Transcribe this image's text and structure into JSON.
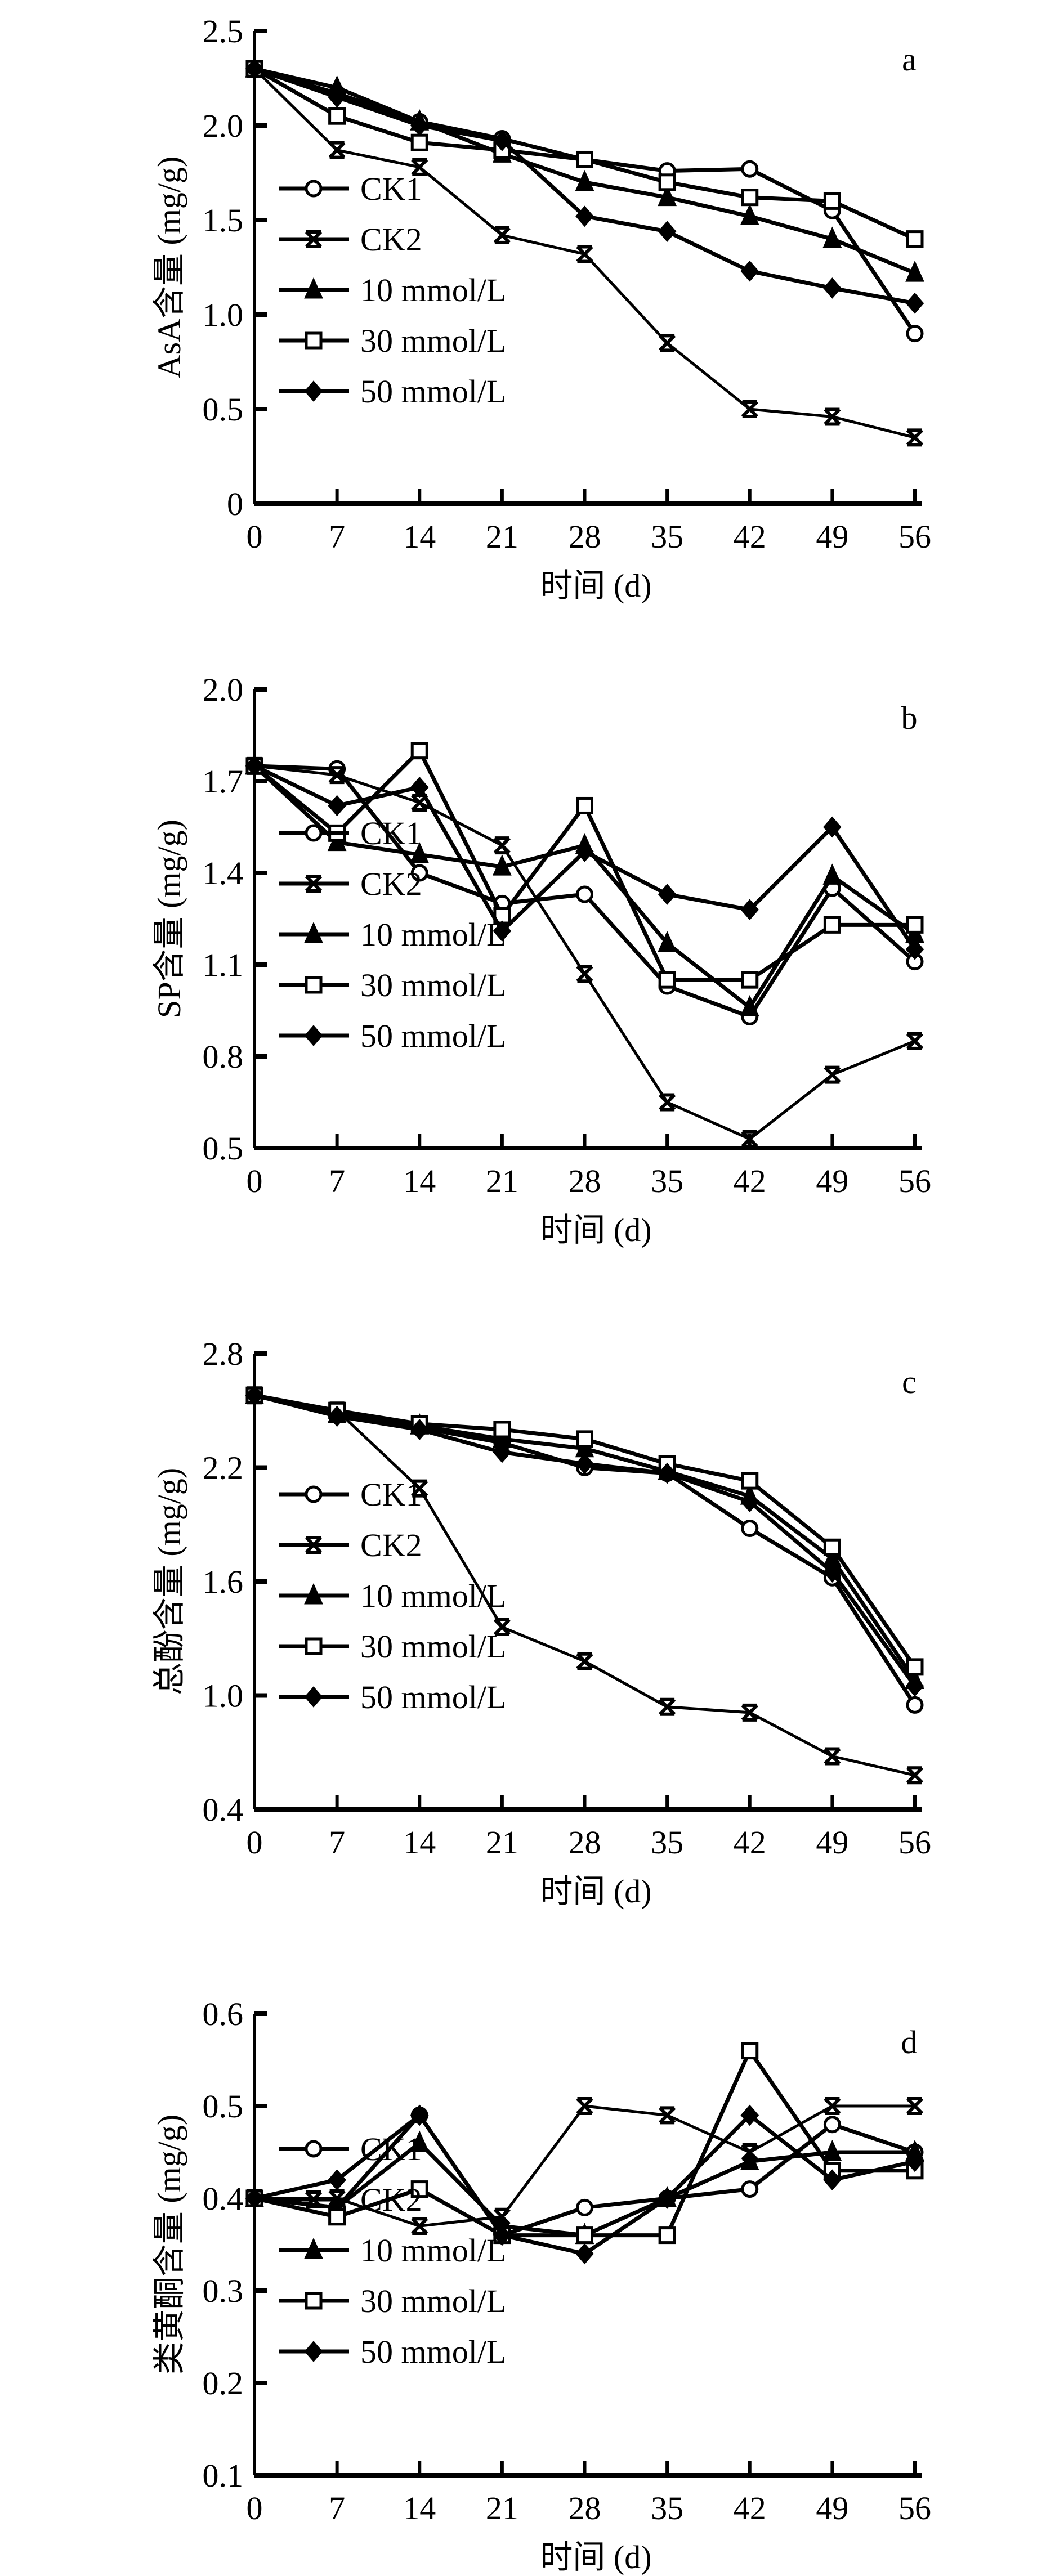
{
  "chart_data": [
    {
      "type": "line",
      "panel_label": "a",
      "xlabel": "时间 (d)",
      "ylabel": "AsA含量 (mg/g)",
      "x": [
        0,
        7,
        14,
        21,
        28,
        35,
        42,
        49,
        56
      ],
      "x_ticks": [
        "0",
        "7",
        "14",
        "21",
        "28",
        "35",
        "42",
        "49",
        "56"
      ],
      "ylim": [
        0,
        2.5
      ],
      "y_ticks": [
        "0",
        "0.5",
        "1.0",
        "1.5",
        "2.0",
        "2.5"
      ],
      "y_tick_values": [
        0,
        0.5,
        1.0,
        1.5,
        2.0,
        2.5
      ],
      "legend_position": "lower-left",
      "grid": false,
      "series": [
        {
          "name": "CK1",
          "marker": "circle",
          "values": [
            2.3,
            2.17,
            2.02,
            1.93,
            1.82,
            1.76,
            1.77,
            1.55,
            0.9
          ]
        },
        {
          "name": "CK2",
          "marker": "x",
          "values": [
            2.3,
            1.87,
            1.78,
            1.42,
            1.32,
            0.85,
            0.5,
            0.46,
            0.35
          ]
        },
        {
          "name": "10 mmol/L",
          "marker": "triangle",
          "values": [
            2.3,
            2.2,
            2.02,
            1.85,
            1.7,
            1.62,
            1.52,
            1.4,
            1.22
          ]
        },
        {
          "name": "30 mmol/L",
          "marker": "square",
          "values": [
            2.3,
            2.05,
            1.91,
            1.87,
            1.82,
            1.7,
            1.62,
            1.6,
            1.4
          ]
        },
        {
          "name": "50 mmol/L",
          "marker": "diamond",
          "values": [
            2.3,
            2.15,
            2.0,
            1.92,
            1.52,
            1.44,
            1.23,
            1.14,
            1.06
          ]
        }
      ]
    },
    {
      "type": "line",
      "panel_label": "b",
      "xlabel": "时间 (d)",
      "ylabel": "SP含量 (mg/g)",
      "x": [
        0,
        7,
        14,
        21,
        28,
        35,
        42,
        49,
        56
      ],
      "x_ticks": [
        "0",
        "7",
        "14",
        "21",
        "28",
        "35",
        "42",
        "49",
        "56"
      ],
      "ylim": [
        0.5,
        2.0
      ],
      "y_ticks": [
        "0.5",
        "0.8",
        "1.1",
        "1.4",
        "1.7",
        "2.0"
      ],
      "y_tick_values": [
        0.5,
        0.8,
        1.1,
        1.4,
        1.7,
        2.0
      ],
      "legend_position": "lower-left",
      "grid": false,
      "series": [
        {
          "name": "CK1",
          "marker": "circle",
          "values": [
            1.75,
            1.74,
            1.4,
            1.3,
            1.33,
            1.03,
            0.93,
            1.35,
            1.11
          ]
        },
        {
          "name": "CK2",
          "marker": "x",
          "values": [
            1.75,
            1.72,
            1.63,
            1.49,
            1.07,
            0.65,
            0.53,
            0.74,
            0.85
          ]
        },
        {
          "name": "10 mmol/L",
          "marker": "triangle",
          "values": [
            1.75,
            1.5,
            1.46,
            1.42,
            1.49,
            1.17,
            0.96,
            1.39,
            1.2
          ]
        },
        {
          "name": "30 mmol/L",
          "marker": "square",
          "values": [
            1.75,
            1.53,
            1.8,
            1.26,
            1.62,
            1.05,
            1.05,
            1.23,
            1.23
          ]
        },
        {
          "name": "50 mmol/L",
          "marker": "diamond",
          "values": [
            1.75,
            1.62,
            1.68,
            1.21,
            1.47,
            1.33,
            1.28,
            1.55,
            1.15
          ]
        }
      ]
    },
    {
      "type": "line",
      "panel_label": "c",
      "xlabel": "时间 (d)",
      "ylabel": "总酚含量 (mg/g)",
      "x": [
        0,
        7,
        14,
        21,
        28,
        35,
        42,
        49,
        56
      ],
      "x_ticks": [
        "0",
        "7",
        "14",
        "21",
        "28",
        "35",
        "42",
        "49",
        "56"
      ],
      "ylim": [
        0.4,
        2.8
      ],
      "y_ticks": [
        "0.4",
        "1.0",
        "1.6",
        "2.2",
        "2.8"
      ],
      "y_tick_values": [
        0.4,
        1.0,
        1.6,
        2.2,
        2.8
      ],
      "legend_position": "lower-left",
      "grid": false,
      "series": [
        {
          "name": "CK1",
          "marker": "circle",
          "values": [
            2.58,
            2.48,
            2.41,
            2.33,
            2.2,
            2.17,
            1.88,
            1.62,
            0.95
          ]
        },
        {
          "name": "CK2",
          "marker": "x",
          "values": [
            2.58,
            2.5,
            2.09,
            1.36,
            1.18,
            0.94,
            0.91,
            0.68,
            0.58
          ]
        },
        {
          "name": "10 mmol/L",
          "marker": "triangle",
          "values": [
            2.58,
            2.48,
            2.42,
            2.35,
            2.3,
            2.18,
            2.05,
            1.72,
            1.08
          ]
        },
        {
          "name": "30 mmol/L",
          "marker": "square",
          "values": [
            2.58,
            2.5,
            2.43,
            2.4,
            2.35,
            2.22,
            2.13,
            1.78,
            1.15
          ]
        },
        {
          "name": "50 mmol/L",
          "marker": "diamond",
          "values": [
            2.58,
            2.47,
            2.4,
            2.28,
            2.22,
            2.17,
            2.02,
            1.65,
            1.05
          ]
        }
      ]
    },
    {
      "type": "line",
      "panel_label": "d",
      "xlabel": "时间 (d)",
      "ylabel": "类黄酮含量 (mg/g)",
      "x": [
        0,
        7,
        14,
        21,
        28,
        35,
        42,
        49,
        56
      ],
      "x_ticks": [
        "0",
        "7",
        "14",
        "21",
        "28",
        "35",
        "42",
        "49",
        "56"
      ],
      "ylim": [
        0.1,
        0.6
      ],
      "y_ticks": [
        "0.1",
        "0.2",
        "0.3",
        "0.4",
        "0.5",
        "0.6"
      ],
      "y_tick_values": [
        0.1,
        0.2,
        0.3,
        0.4,
        0.5,
        0.6
      ],
      "legend_position": "lower-left",
      "grid": false,
      "series": [
        {
          "name": "CK1",
          "marker": "circle",
          "values": [
            0.4,
            0.39,
            0.49,
            0.36,
            0.39,
            0.4,
            0.41,
            0.48,
            0.45
          ]
        },
        {
          "name": "CK2",
          "marker": "x",
          "values": [
            0.4,
            0.4,
            0.37,
            0.38,
            0.5,
            0.49,
            0.45,
            0.5,
            0.5
          ]
        },
        {
          "name": "10 mmol/L",
          "marker": "triangle",
          "values": [
            0.4,
            0.39,
            0.46,
            0.37,
            0.36,
            0.4,
            0.44,
            0.45,
            0.45
          ]
        },
        {
          "name": "30 mmol/L",
          "marker": "square",
          "values": [
            0.4,
            0.38,
            0.41,
            0.36,
            0.36,
            0.36,
            0.56,
            0.43,
            0.43
          ]
        },
        {
          "name": "50 mmol/L",
          "marker": "diamond",
          "values": [
            0.4,
            0.42,
            0.49,
            0.36,
            0.34,
            0.4,
            0.49,
            0.42,
            0.44
          ]
        }
      ]
    }
  ]
}
